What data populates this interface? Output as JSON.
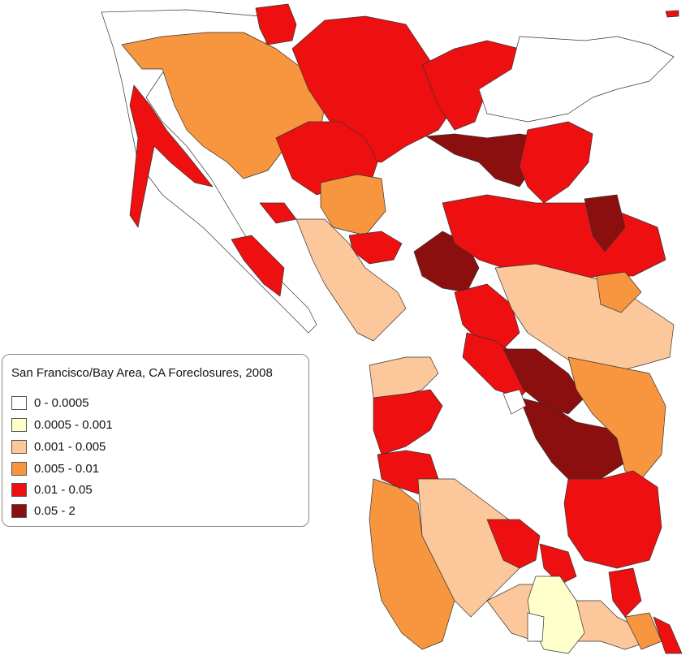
{
  "legend": {
    "title": "San Francisco/Bay Area, CA Foreclosures, 2008",
    "classes": [
      {
        "label": "0 - 0.0005",
        "color": "#ffffff"
      },
      {
        "label": "0.0005 - 0.001",
        "color": "#ffffcc"
      },
      {
        "label": "0.001 - 0.005",
        "color": "#fcc79a"
      },
      {
        "label": "0.005 - 0.01",
        "color": "#f7963e"
      },
      {
        "label": "0.01 - 0.05",
        "color": "#ee1010"
      },
      {
        "label": "0.05 - 2",
        "color": "#8c0f0f"
      }
    ]
  },
  "colors": {
    "outline": "#333333",
    "background": "#ffffff"
  }
}
